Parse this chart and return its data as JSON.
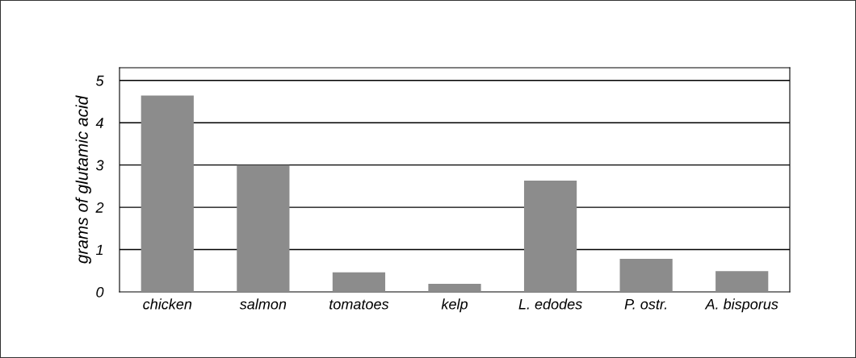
{
  "chart_data": {
    "type": "bar",
    "ylabel": "grams of glutamic acid",
    "categories": [
      "chicken",
      "salmon",
      "tomatoes",
      "kelp",
      "L. edodes",
      "P. ostr.",
      "A. bisporus"
    ],
    "values": [
      4.64,
      3.0,
      0.46,
      0.19,
      2.63,
      0.78,
      0.49
    ],
    "color": "#8c8c8c",
    "ylim": [
      0,
      5.3
    ],
    "yticks": [
      0,
      1,
      2,
      3,
      4,
      5
    ],
    "grid": "y"
  }
}
